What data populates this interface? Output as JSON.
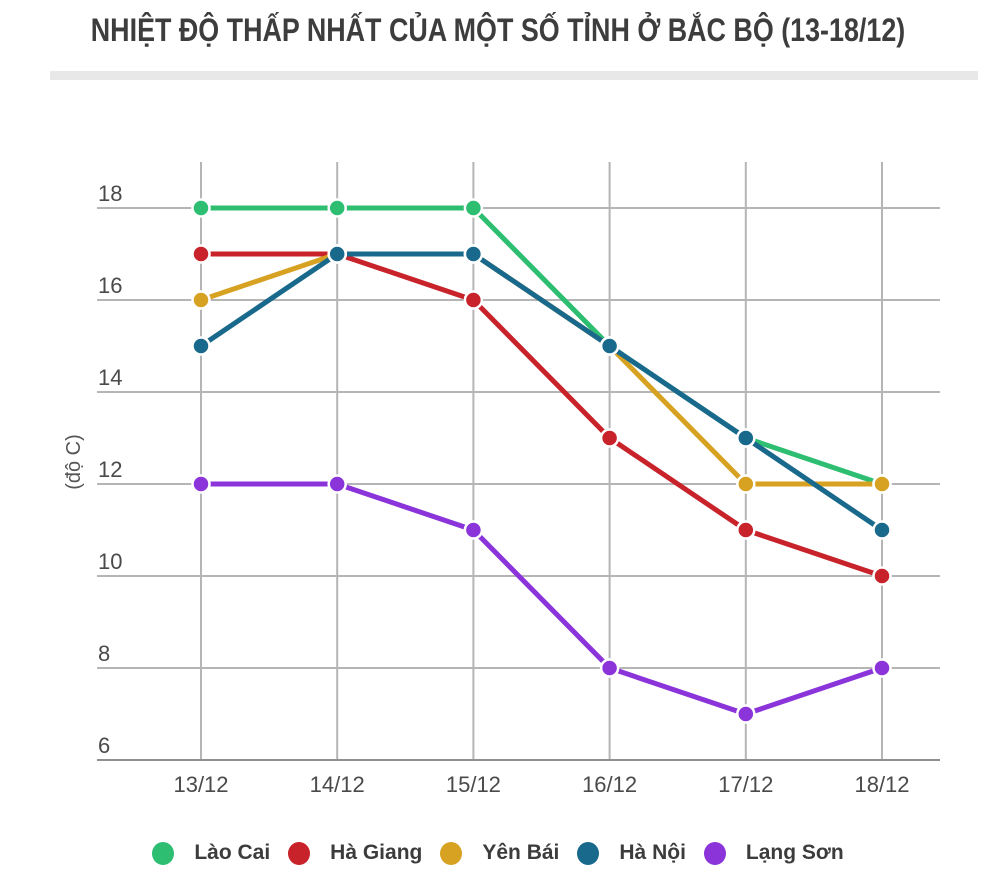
{
  "title": "NHIỆT ĐỘ THẤP NHẤT CỦA MỘT SỐ TỈNH Ở BẮC BỘ (13-18/12)",
  "chart_data": {
    "type": "line",
    "title": "NHIỆT ĐỘ THẤP NHẤT CỦA MỘT SỐ TỈNH Ở BẮC BỘ (13-18/12)",
    "categories": [
      "13/12",
      "14/12",
      "15/12",
      "16/12",
      "17/12",
      "18/12"
    ],
    "series": [
      {
        "name": "Lào Cai",
        "color": "#2dbe71",
        "values": [
          18,
          18,
          18,
          15,
          13,
          12
        ]
      },
      {
        "name": "Hà Giang",
        "color": "#c8232a",
        "values": [
          17,
          17,
          16,
          13,
          11,
          10
        ]
      },
      {
        "name": "Yên Bái",
        "color": "#d7a222",
        "values": [
          16,
          17,
          17,
          15,
          12,
          12
        ]
      },
      {
        "name": "Hà Nội",
        "color": "#19698c",
        "values": [
          15,
          17,
          17,
          15,
          13,
          11
        ]
      },
      {
        "name": "Lạng Sơn",
        "color": "#8a34d9",
        "values": [
          12,
          12,
          11,
          8,
          7,
          8
        ]
      }
    ],
    "xlabel": "",
    "ylabel": "(độ C)",
    "yticks": [
      6,
      8,
      10,
      12,
      14,
      16,
      18
    ],
    "ylim": [
      6,
      19
    ],
    "grid": true,
    "legend_position": "bottom"
  },
  "colors": {
    "grid": "#b5b5b5",
    "baseline": "#8f8f8f",
    "axis_text": "#4a4a4a",
    "title_text": "#3d3d3d",
    "divider": "#e8e8e8",
    "legend_text": "#3c3c3c",
    "background": "#ffffff"
  }
}
